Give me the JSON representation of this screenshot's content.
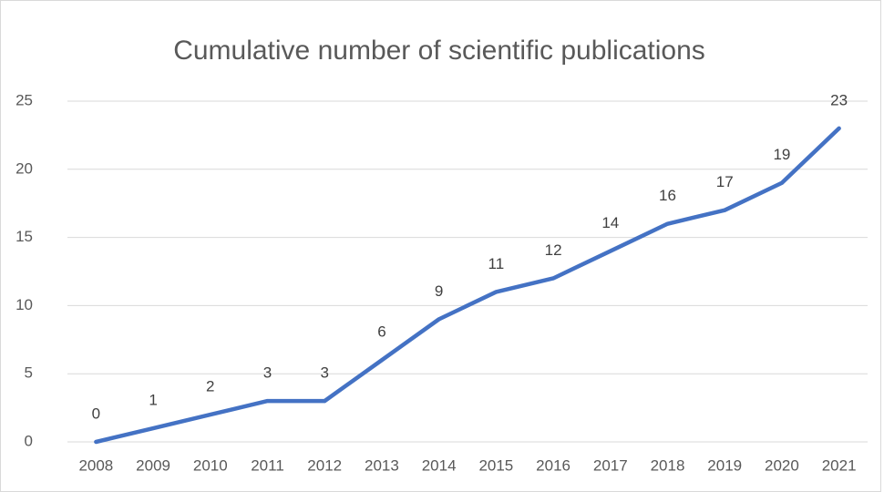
{
  "chart_data": {
    "type": "line",
    "title": "Cumulative number of scientific publications",
    "categories": [
      "2008",
      "2009",
      "2010",
      "2011",
      "2012",
      "2013",
      "2014",
      "2015",
      "2016",
      "2017",
      "2018",
      "2019",
      "2020",
      "2021"
    ],
    "values": [
      0,
      1,
      2,
      3,
      3,
      6,
      9,
      11,
      12,
      14,
      16,
      17,
      19,
      23
    ],
    "color": "#4472c4",
    "ylim": [
      0,
      25
    ],
    "yticks": [
      0,
      5,
      10,
      15,
      20,
      25
    ],
    "grid": true
  }
}
